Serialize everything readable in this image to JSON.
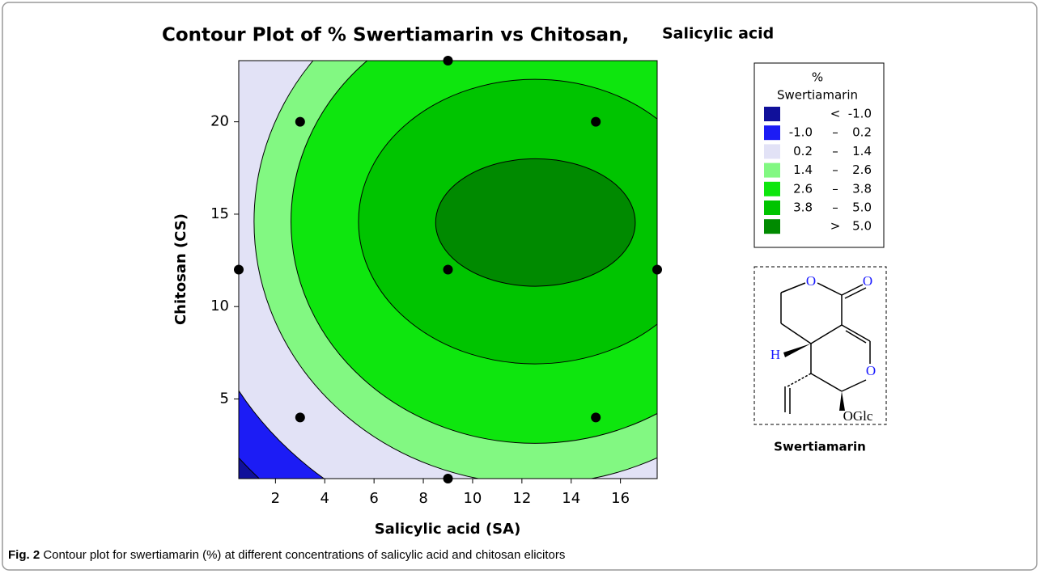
{
  "chart_data": {
    "type": "contour",
    "title": [
      "Contour Plot of % Swertiamarin vs Chitosan,",
      "Salicylic acid"
    ],
    "xlabel": "Salicylic acid (SA)",
    "ylabel": "Chitosan (CS)",
    "xlim": [
      0.51,
      17.49
    ],
    "ylim": [
      0.69,
      23.31
    ],
    "xticks": [
      2,
      4,
      6,
      8,
      10,
      12,
      14,
      16
    ],
    "yticks": [
      5,
      10,
      15,
      20
    ],
    "levels": [
      {
        "value": -1.0,
        "label": "-1.0"
      },
      {
        "value": 0.2,
        "label": "0.2"
      },
      {
        "value": 1.4,
        "label": "1.4"
      },
      {
        "value": 2.6,
        "label": "2.6"
      },
      {
        "value": 3.8,
        "label": "3.8"
      },
      {
        "value": 5.0,
        "label": "5.0"
      }
    ],
    "boundaries": [
      {
        "cx": 12.53,
        "cy": 14.6,
        "rx": 15.8,
        "ry": 19.7
      },
      {
        "cx": 12.53,
        "cy": 14.6,
        "rx": 14.1,
        "ry": 17.5
      },
      {
        "cx": 12.53,
        "cy": 14.6,
        "rx": 11.4,
        "ry": 14.2
      },
      {
        "cx": 12.53,
        "cy": 14.6,
        "rx": 9.9,
        "ry": 12.0
      },
      {
        "cx": 12.53,
        "cy": 14.6,
        "rx": 7.16,
        "ry": 7.7
      },
      {
        "cx": 12.55,
        "cy": 14.55,
        "rx": 4.05,
        "ry": 3.45
      }
    ],
    "legend": {
      "title": [
        "%",
        "Swertiamarin"
      ],
      "below": "<",
      "between": "–",
      "above": ">",
      "colors": [
        "#10109a",
        "#1c1cf5",
        "#e2e2f6",
        "#82f882",
        "#0ee60e",
        "#00c400",
        "#008a00"
      ]
    },
    "points": {
      "x": [
        3,
        3,
        15,
        15,
        9,
        9,
        9,
        0.51,
        17.49
      ],
      "y": [
        4,
        20,
        4,
        20,
        12,
        0.69,
        23.31,
        12,
        12
      ],
      "color": "#000000"
    }
  },
  "structure": {
    "name": "Swertiamarin",
    "atoms": [
      "O",
      "O",
      "O",
      "H",
      "OGlc"
    ]
  },
  "caption": {
    "label": "Fig. 2",
    "text": "Contour plot for swertiamarin (%) at different concentrations of salicylic acid and chitosan elicitors"
  }
}
